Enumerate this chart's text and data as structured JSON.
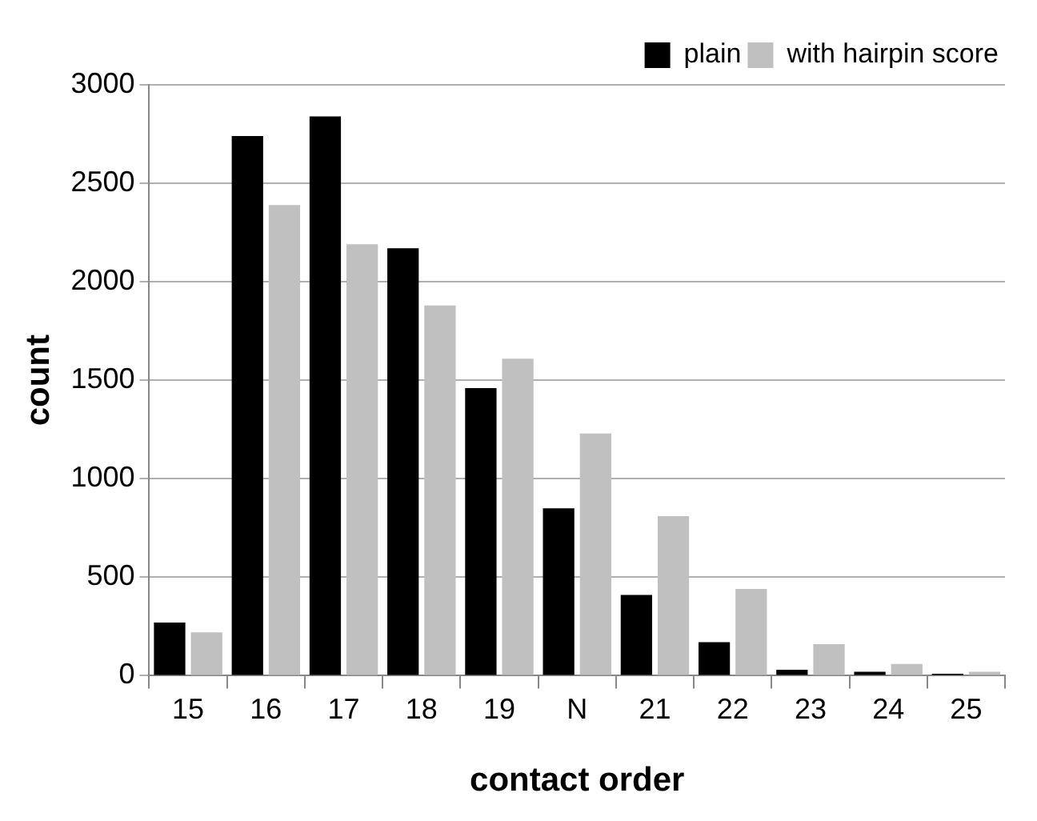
{
  "chart_data": {
    "type": "bar",
    "xlabel": "contact order",
    "ylabel": "count",
    "categories": [
      "15",
      "16",
      "17",
      "18",
      "19",
      "N",
      "21",
      "22",
      "23",
      "24",
      "25"
    ],
    "series": [
      {
        "name": "plain",
        "color": "#000000",
        "values": [
          270,
          2740,
          2840,
          2170,
          1460,
          850,
          410,
          170,
          30,
          20,
          10
        ]
      },
      {
        "name": "with hairpin score",
        "color": "#c0c0c0",
        "values": [
          220,
          2390,
          2190,
          1880,
          1610,
          1230,
          810,
          440,
          160,
          60,
          20
        ]
      }
    ],
    "ylim": [
      0,
      3000
    ],
    "yticks": [
      0,
      500,
      1000,
      1500,
      2000,
      2500,
      3000
    ],
    "grid": "y",
    "legend": "top right"
  }
}
